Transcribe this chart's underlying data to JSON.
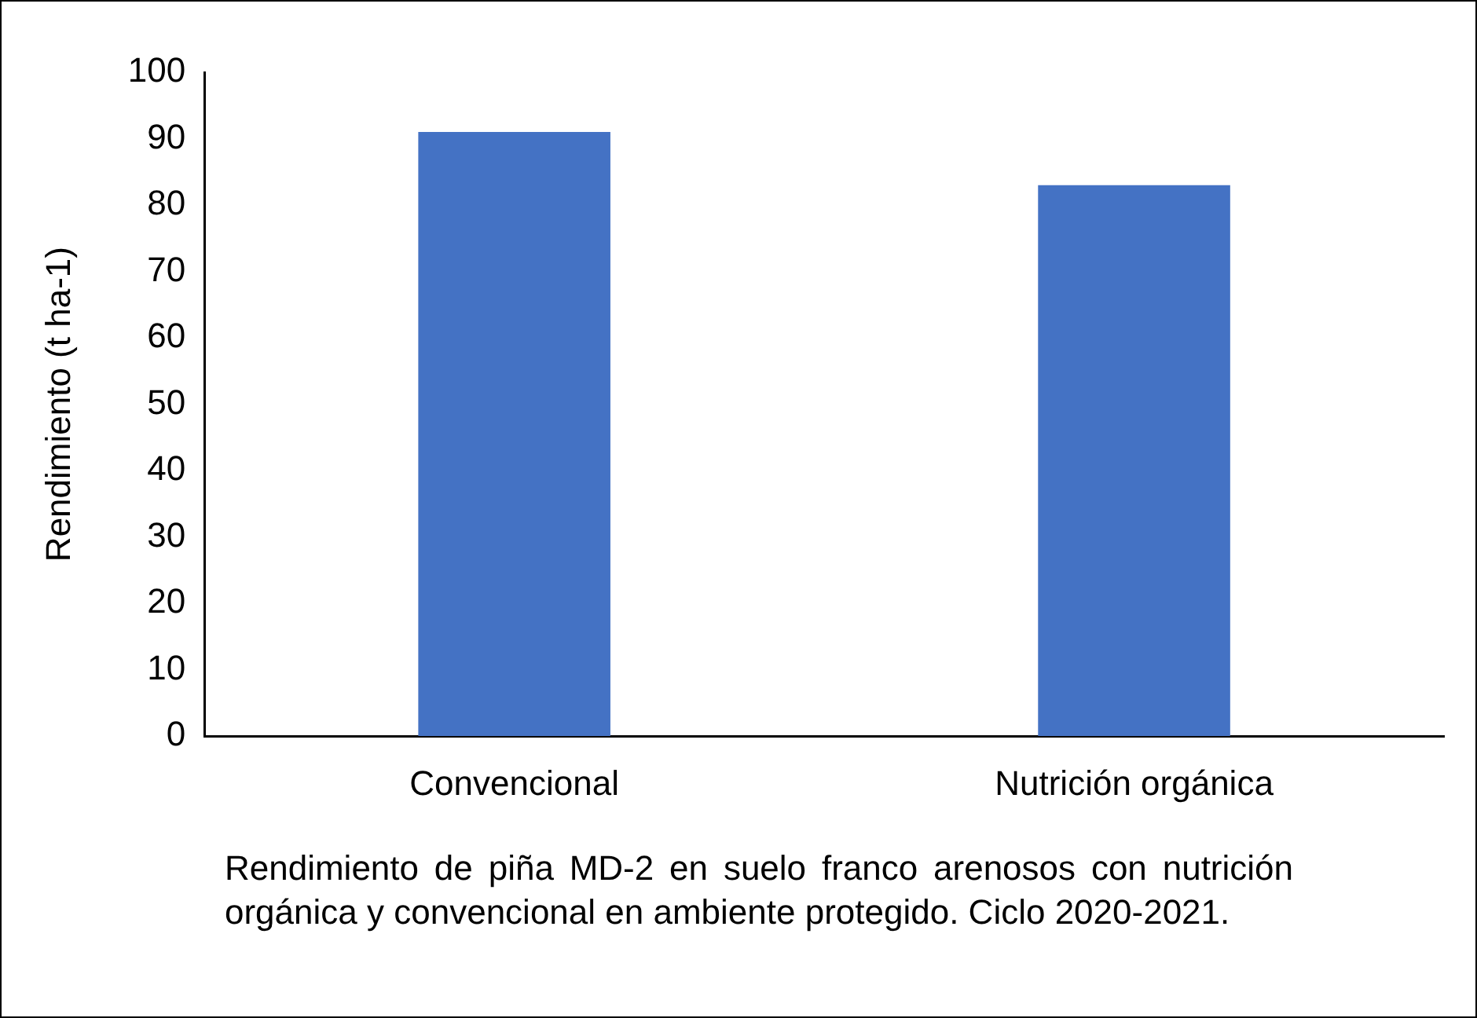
{
  "chart_data": {
    "type": "bar",
    "ylabel": "Rendimiento (t ha-1)",
    "categories": [
      "Convencional",
      "Nutrición orgánica"
    ],
    "values": [
      91,
      83
    ],
    "color": "#4472c4",
    "ylim": [
      0,
      100
    ],
    "yticks": [
      0,
      10,
      20,
      30,
      40,
      50,
      60,
      70,
      80,
      90,
      100
    ],
    "grid": false,
    "legend": false,
    "annotations": [
      "Rendimiento de piña MD-2 en suelo franco arenosos con nutrición orgánica y convencional en ambiente protegido. Ciclo 2020-2021."
    ]
  }
}
